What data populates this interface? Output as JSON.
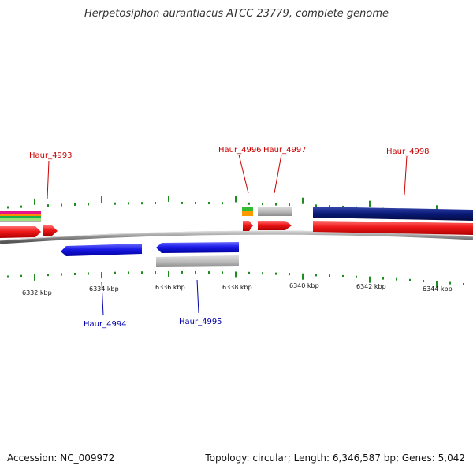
{
  "title": "Herpetosiphon aurantiacus ATCC 23779, complete genome",
  "footer": {
    "accession": "Accession: NC_009972",
    "summary": "Topology: circular; Length: 6,346,587 bp; Genes: 5,042"
  },
  "colors": {
    "tick": "#1e8c1e",
    "plus_strand_label": "#cc0000",
    "minus_strand_label": "#0000aa",
    "backbone": "#8a8a8a"
  },
  "ticks": [
    {
      "label": "6332 kbp"
    },
    {
      "label": "6334 kbp"
    },
    {
      "label": "6336 kbp"
    },
    {
      "label": "6338 kbp"
    },
    {
      "label": "6340 kbp"
    },
    {
      "label": "6342 kbp"
    },
    {
      "label": "6344 kbp"
    }
  ],
  "gene_labels": [
    {
      "name": "Haur_4993",
      "strand": "plus"
    },
    {
      "name": "Haur_4996",
      "strand": "plus"
    },
    {
      "name": "Haur_4997",
      "strand": "plus"
    },
    {
      "name": "Haur_4998",
      "strand": "plus"
    },
    {
      "name": "Haur_4994",
      "strand": "minus"
    },
    {
      "name": "Haur_4995",
      "strand": "minus"
    }
  ],
  "features": [
    {
      "id": "f-4993",
      "color": "#e01010"
    },
    {
      "id": "f-4993b",
      "color": "#e01010"
    },
    {
      "id": "f-4996",
      "color": "#e01010"
    },
    {
      "id": "f-4997",
      "color": "#e01010"
    },
    {
      "id": "f-4998",
      "color": "#e01010"
    },
    {
      "id": "f-4994",
      "color": "#1a1ae6"
    },
    {
      "id": "f-4995",
      "color": "#1a1ae6"
    },
    {
      "id": "f-4995-grey",
      "color": "#b5b5b5"
    },
    {
      "id": "f-4997-grey",
      "color": "#b5b5b5"
    },
    {
      "id": "f-4998-navy",
      "color": "#0a1a78"
    }
  ]
}
